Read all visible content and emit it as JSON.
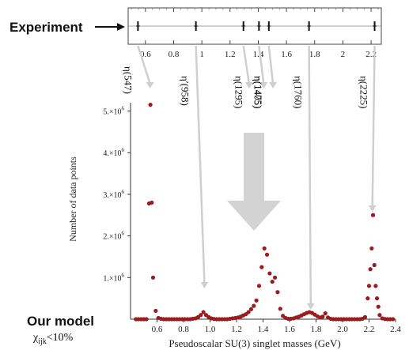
{
  "colors": {
    "points": "#9b1b1e",
    "arrow": "#cfcfcf",
    "axis": "#333333",
    "text": "#111111"
  },
  "labels": {
    "experiment": "Experiment",
    "our_model": "Our model",
    "chi_condition": "χ",
    "chi_sub": "ijk",
    "chi_rest": "<10%"
  },
  "chart_data": [
    {
      "type": "strip",
      "name": "experiment",
      "x_ticks": [
        "0.6",
        "0.8",
        "1",
        "1.2",
        "1.4",
        "1.6",
        "1.8",
        "2",
        "2.2"
      ],
      "xlim": [
        0.5,
        2.25
      ],
      "measurements": [
        0.547,
        0.958,
        1.295,
        1.405,
        1.475,
        1.76,
        2.225
      ],
      "resonances": [
        {
          "label": "η(547)",
          "mass": 0.547
        },
        {
          "label": "η′(958)",
          "mass": 0.958
        },
        {
          "label": "η(1295)",
          "mass": 1.295
        },
        {
          "label": "η(1405)",
          "mass": 1.405
        },
        {
          "label": "η(1475)",
          "mass": 1.475
        },
        {
          "label": "η(1760)",
          "mass": 1.76
        },
        {
          "label": "η(2225)",
          "mass": 2.225
        }
      ]
    },
    {
      "type": "scatter",
      "name": "our-model",
      "xlabel": "Pseudoscalar SU(3) singlet masses (GeV)",
      "ylabel": "Number of data points",
      "xlim": [
        0.4,
        2.4
      ],
      "ylim": [
        0,
        5200000
      ],
      "x_ticks": [
        "0.6",
        "0.8",
        "1.0",
        "1.2",
        "1.4",
        "1.6",
        "1.8",
        "2.0",
        "2.2",
        "2.4"
      ],
      "y_ticks": [
        {
          "value": 1000000,
          "mantissa": "1.×10",
          "exp": "6"
        },
        {
          "value": 2000000,
          "mantissa": "2.×10",
          "exp": "6"
        },
        {
          "value": 3000000,
          "mantissa": "3.×10",
          "exp": "6"
        },
        {
          "value": 4000000,
          "mantissa": "4.×10",
          "exp": "6"
        },
        {
          "value": 5000000,
          "mantissa": "5.×10",
          "exp": "6"
        }
      ],
      "points": [
        [
          0.44,
          0
        ],
        [
          0.46,
          0
        ],
        [
          0.48,
          0
        ],
        [
          0.5,
          0
        ],
        [
          0.52,
          0
        ],
        [
          0.54,
          2780000
        ],
        [
          0.55,
          5150000
        ],
        [
          0.56,
          2800000
        ],
        [
          0.57,
          1000000
        ],
        [
          0.59,
          200000
        ],
        [
          0.61,
          30000
        ],
        [
          0.63,
          10000
        ],
        [
          0.65,
          0
        ],
        [
          0.67,
          0
        ],
        [
          0.69,
          0
        ],
        [
          0.71,
          0
        ],
        [
          0.73,
          0
        ],
        [
          0.75,
          0
        ],
        [
          0.77,
          0
        ],
        [
          0.79,
          0
        ],
        [
          0.81,
          0
        ],
        [
          0.83,
          0
        ],
        [
          0.85,
          0
        ],
        [
          0.87,
          10000
        ],
        [
          0.89,
          20000
        ],
        [
          0.91,
          50000
        ],
        [
          0.93,
          100000
        ],
        [
          0.95,
          170000
        ],
        [
          0.97,
          100000
        ],
        [
          0.99,
          50000
        ],
        [
          1.01,
          20000
        ],
        [
          1.03,
          5000
        ],
        [
          1.05,
          0
        ],
        [
          1.07,
          0
        ],
        [
          1.09,
          0
        ],
        [
          1.11,
          0
        ],
        [
          1.13,
          0
        ],
        [
          1.15,
          10000
        ],
        [
          1.17,
          20000
        ],
        [
          1.19,
          30000
        ],
        [
          1.21,
          40000
        ],
        [
          1.23,
          60000
        ],
        [
          1.25,
          90000
        ],
        [
          1.27,
          120000
        ],
        [
          1.29,
          170000
        ],
        [
          1.31,
          240000
        ],
        [
          1.33,
          320000
        ],
        [
          1.35,
          450000
        ],
        [
          1.37,
          800000
        ],
        [
          1.39,
          1250000
        ],
        [
          1.41,
          1700000
        ],
        [
          1.43,
          1550000
        ],
        [
          1.45,
          1100000
        ],
        [
          1.47,
          900000
        ],
        [
          1.49,
          1000000
        ],
        [
          1.51,
          650000
        ],
        [
          1.53,
          250000
        ],
        [
          1.55,
          80000
        ],
        [
          1.57,
          30000
        ],
        [
          1.59,
          10000
        ],
        [
          1.61,
          10000
        ],
        [
          1.63,
          20000
        ],
        [
          1.65,
          40000
        ],
        [
          1.67,
          60000
        ],
        [
          1.69,
          90000
        ],
        [
          1.71,
          120000
        ],
        [
          1.73,
          150000
        ],
        [
          1.75,
          170000
        ],
        [
          1.77,
          150000
        ],
        [
          1.79,
          110000
        ],
        [
          1.81,
          70000
        ],
        [
          1.83,
          40000
        ],
        [
          1.85,
          60000
        ],
        [
          1.87,
          140000
        ],
        [
          1.89,
          40000
        ],
        [
          1.91,
          10000
        ],
        [
          1.93,
          0
        ],
        [
          1.95,
          0
        ],
        [
          1.97,
          0
        ],
        [
          1.99,
          0
        ],
        [
          2.01,
          0
        ],
        [
          2.03,
          0
        ],
        [
          2.05,
          0
        ],
        [
          2.07,
          0
        ],
        [
          2.09,
          0
        ],
        [
          2.11,
          0
        ],
        [
          2.13,
          0
        ],
        [
          2.15,
          10000
        ],
        [
          2.17,
          50000
        ],
        [
          2.19,
          500000
        ],
        [
          2.2,
          800000
        ],
        [
          2.21,
          1200000
        ],
        [
          2.22,
          1700000
        ],
        [
          2.23,
          2500000
        ],
        [
          2.24,
          1300000
        ],
        [
          2.25,
          800000
        ],
        [
          2.26,
          500000
        ],
        [
          2.27,
          300000
        ],
        [
          2.28,
          100000
        ],
        [
          2.3,
          20000
        ],
        [
          2.32,
          5000
        ],
        [
          2.34,
          0
        ],
        [
          2.36,
          0
        ],
        [
          2.38,
          0
        ]
      ]
    }
  ]
}
